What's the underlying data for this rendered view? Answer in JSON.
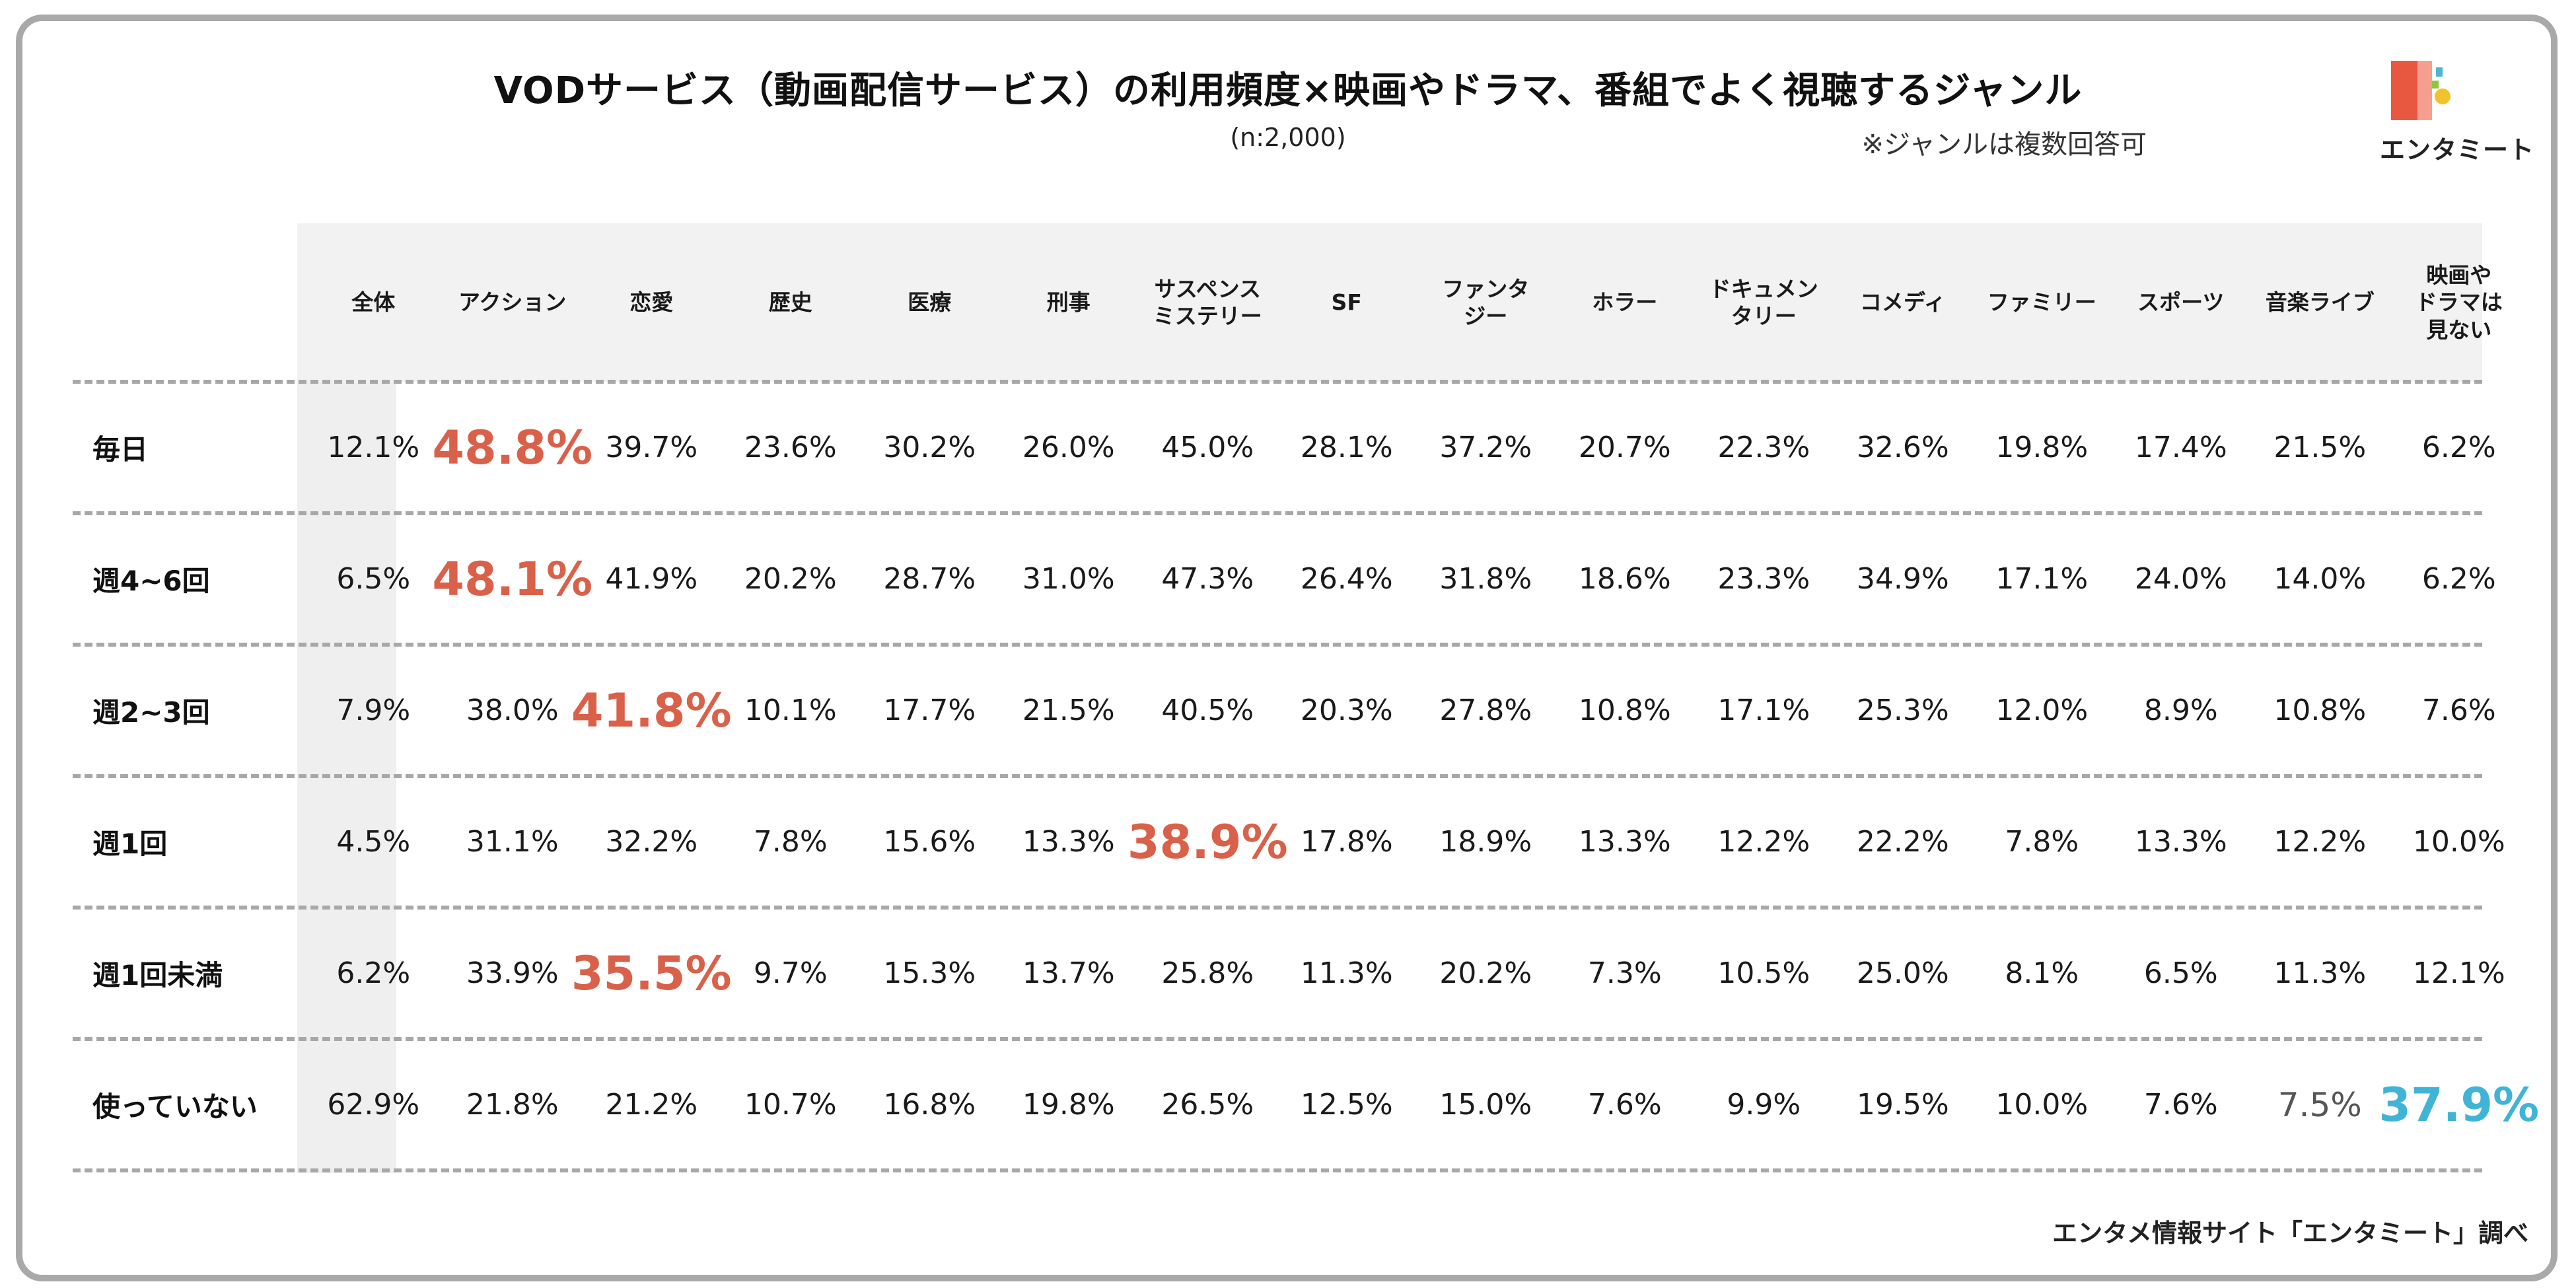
{
  "title": "VODサービス（動画配信サービス）の利用頻度×映画やドラマ、番組でよく視聴するジャンル",
  "sample": "(n:2,000)",
  "note": "※ジャンルは複数回答可",
  "logo_text": "エンタミート",
  "source": "エンタメ情報サイト「エンタミート」調べ",
  "colors": {
    "highlight_red": "#d9614a",
    "highlight_blue": "#40b4d6",
    "header_bg": "#f2f2f2",
    "divider": "#a8a8a8",
    "frame": "#a9a9a9"
  },
  "chart_data": {
    "type": "table",
    "title": "VODサービス（動画配信サービス）の利用頻度×映画やドラマ、番組でよく視聴するジャンル",
    "columns": [
      [
        "全体"
      ],
      [
        "アクション"
      ],
      [
        "恋愛"
      ],
      [
        "歴史"
      ],
      [
        "医療"
      ],
      [
        "刑事"
      ],
      [
        "サスペンス",
        "ミステリー"
      ],
      [
        "SF"
      ],
      [
        "ファンタ",
        "ジー"
      ],
      [
        "ホラー"
      ],
      [
        "ドキュメン",
        "タリー"
      ],
      [
        "コメディ"
      ],
      [
        "ファミリー"
      ],
      [
        "スポーツ"
      ],
      [
        "音楽ライブ"
      ],
      [
        "映画や",
        "ドラマは",
        "見ない"
      ]
    ],
    "rows": [
      {
        "label": "毎日",
        "values": [
          "12.1%",
          "48.8%",
          "39.7%",
          "23.6%",
          "30.2%",
          "26.0%",
          "45.0%",
          "28.1%",
          "37.2%",
          "20.7%",
          "22.3%",
          "32.6%",
          "19.8%",
          "17.4%",
          "21.5%",
          "6.2%"
        ],
        "highlight": {
          "1": "red"
        }
      },
      {
        "label": "週4~6回",
        "values": [
          "6.5%",
          "48.1%",
          "41.9%",
          "20.2%",
          "28.7%",
          "31.0%",
          "47.3%",
          "26.4%",
          "31.8%",
          "18.6%",
          "23.3%",
          "34.9%",
          "17.1%",
          "24.0%",
          "14.0%",
          "6.2%"
        ],
        "highlight": {
          "1": "red"
        }
      },
      {
        "label": "週2~3回",
        "values": [
          "7.9%",
          "38.0%",
          "41.8%",
          "10.1%",
          "17.7%",
          "21.5%",
          "40.5%",
          "20.3%",
          "27.8%",
          "10.8%",
          "17.1%",
          "25.3%",
          "12.0%",
          "8.9%",
          "10.8%",
          "7.6%"
        ],
        "highlight": {
          "2": "red"
        }
      },
      {
        "label": "週1回",
        "values": [
          "4.5%",
          "31.1%",
          "32.2%",
          "7.8%",
          "15.6%",
          "13.3%",
          "38.9%",
          "17.8%",
          "18.9%",
          "13.3%",
          "12.2%",
          "22.2%",
          "7.8%",
          "13.3%",
          "12.2%",
          "10.0%"
        ],
        "highlight": {
          "6": "red"
        }
      },
      {
        "label": "週1回未満",
        "values": [
          "6.2%",
          "33.9%",
          "35.5%",
          "9.7%",
          "15.3%",
          "13.7%",
          "25.8%",
          "11.3%",
          "20.2%",
          "7.3%",
          "10.5%",
          "25.0%",
          "8.1%",
          "6.5%",
          "11.3%",
          "12.1%"
        ],
        "highlight": {
          "2": "red"
        }
      },
      {
        "label": "使っていない",
        "values": [
          "62.9%",
          "21.8%",
          "21.2%",
          "10.7%",
          "16.8%",
          "19.8%",
          "26.5%",
          "12.5%",
          "15.0%",
          "7.6%",
          "9.9%",
          "19.5%",
          "10.0%",
          "7.6%",
          "7.5%",
          "37.9%"
        ],
        "highlight": {
          "14": "muted",
          "15": "blue"
        }
      }
    ]
  }
}
